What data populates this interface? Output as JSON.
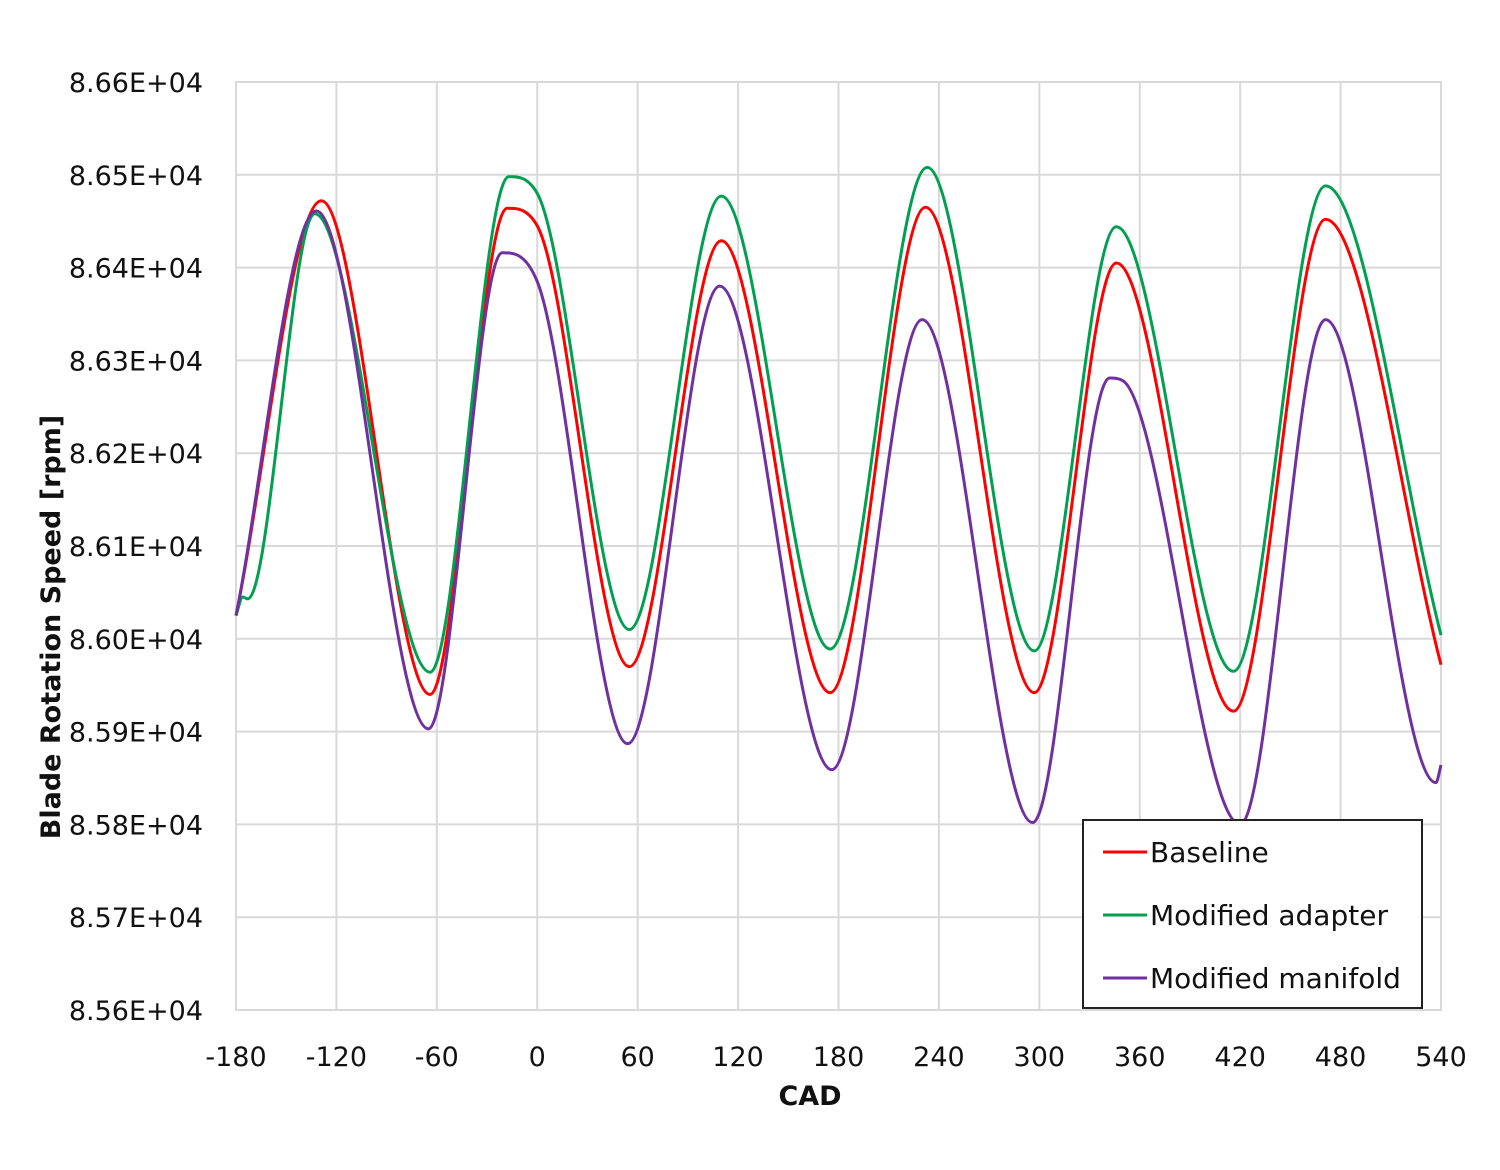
{
  "chart_data": {
    "type": "line",
    "title": "",
    "xlabel": "CAD",
    "ylabel": "Blade Rotation Speed [rpm]",
    "xlim": [
      -180,
      540
    ],
    "ylim": [
      85600,
      86600
    ],
    "x_ticks": [
      -180,
      -120,
      -60,
      0,
      60,
      120,
      180,
      240,
      300,
      360,
      420,
      480,
      540
    ],
    "x_tick_labels": [
      "-180",
      "-120",
      "-60",
      "0",
      "60",
      "120",
      "180",
      "240",
      "300",
      "360",
      "420",
      "480",
      "540"
    ],
    "y_ticks": [
      85600,
      85700,
      85800,
      85900,
      86000,
      86100,
      86200,
      86300,
      86400,
      86500,
      86600
    ],
    "y_tick_labels": [
      "8.56E+04",
      "8.57E+04",
      "8.58E+04",
      "8.59E+04",
      "8.60E+04",
      "8.61E+04",
      "8.62E+04",
      "8.63E+04",
      "8.64E+04",
      "8.65E+04",
      "8.66E+04"
    ],
    "grid": true,
    "legend_position": "bottom-right",
    "series": [
      {
        "name": "Baseline",
        "color": "#ff0000",
        "points": [
          [
            -180,
            86025
          ],
          [
            -129,
            86472
          ],
          [
            -64,
            85940
          ],
          [
            -18,
            86464
          ],
          [
            0,
            86445
          ],
          [
            55,
            85970
          ],
          [
            110,
            86429
          ],
          [
            175,
            85942
          ],
          [
            232,
            86465
          ],
          [
            297,
            85942
          ],
          [
            346,
            86405
          ],
          [
            416,
            85922
          ],
          [
            471,
            86452
          ],
          [
            540,
            85972
          ]
        ]
      },
      {
        "name": "Modified adapter",
        "color": "#00a050",
        "points": [
          [
            -180,
            86025
          ],
          [
            -176,
            86045
          ],
          [
            -173,
            86043
          ],
          [
            -133,
            86458
          ],
          [
            -64,
            85964
          ],
          [
            -17,
            86498
          ],
          [
            0,
            86480
          ],
          [
            55,
            86010
          ],
          [
            110,
            86477
          ],
          [
            175,
            85989
          ],
          [
            233,
            86508
          ],
          [
            297,
            85987
          ],
          [
            346,
            86444
          ],
          [
            416,
            85965
          ],
          [
            471,
            86488
          ],
          [
            540,
            86004
          ]
        ]
      },
      {
        "name": "Modified manifold",
        "color": "#7030a0",
        "points": [
          [
            -180,
            86025
          ],
          [
            -132,
            86461
          ],
          [
            -65,
            85903
          ],
          [
            -21,
            86416
          ],
          [
            0,
            86385
          ],
          [
            54,
            85887
          ],
          [
            109,
            86380
          ],
          [
            176,
            85859
          ],
          [
            230,
            86344
          ],
          [
            296,
            85802
          ],
          [
            342,
            86281
          ],
          [
            350,
            86278
          ],
          [
            420,
            85800
          ],
          [
            471,
            86344
          ],
          [
            537,
            85845
          ],
          [
            540,
            85864
          ]
        ]
      }
    ]
  }
}
